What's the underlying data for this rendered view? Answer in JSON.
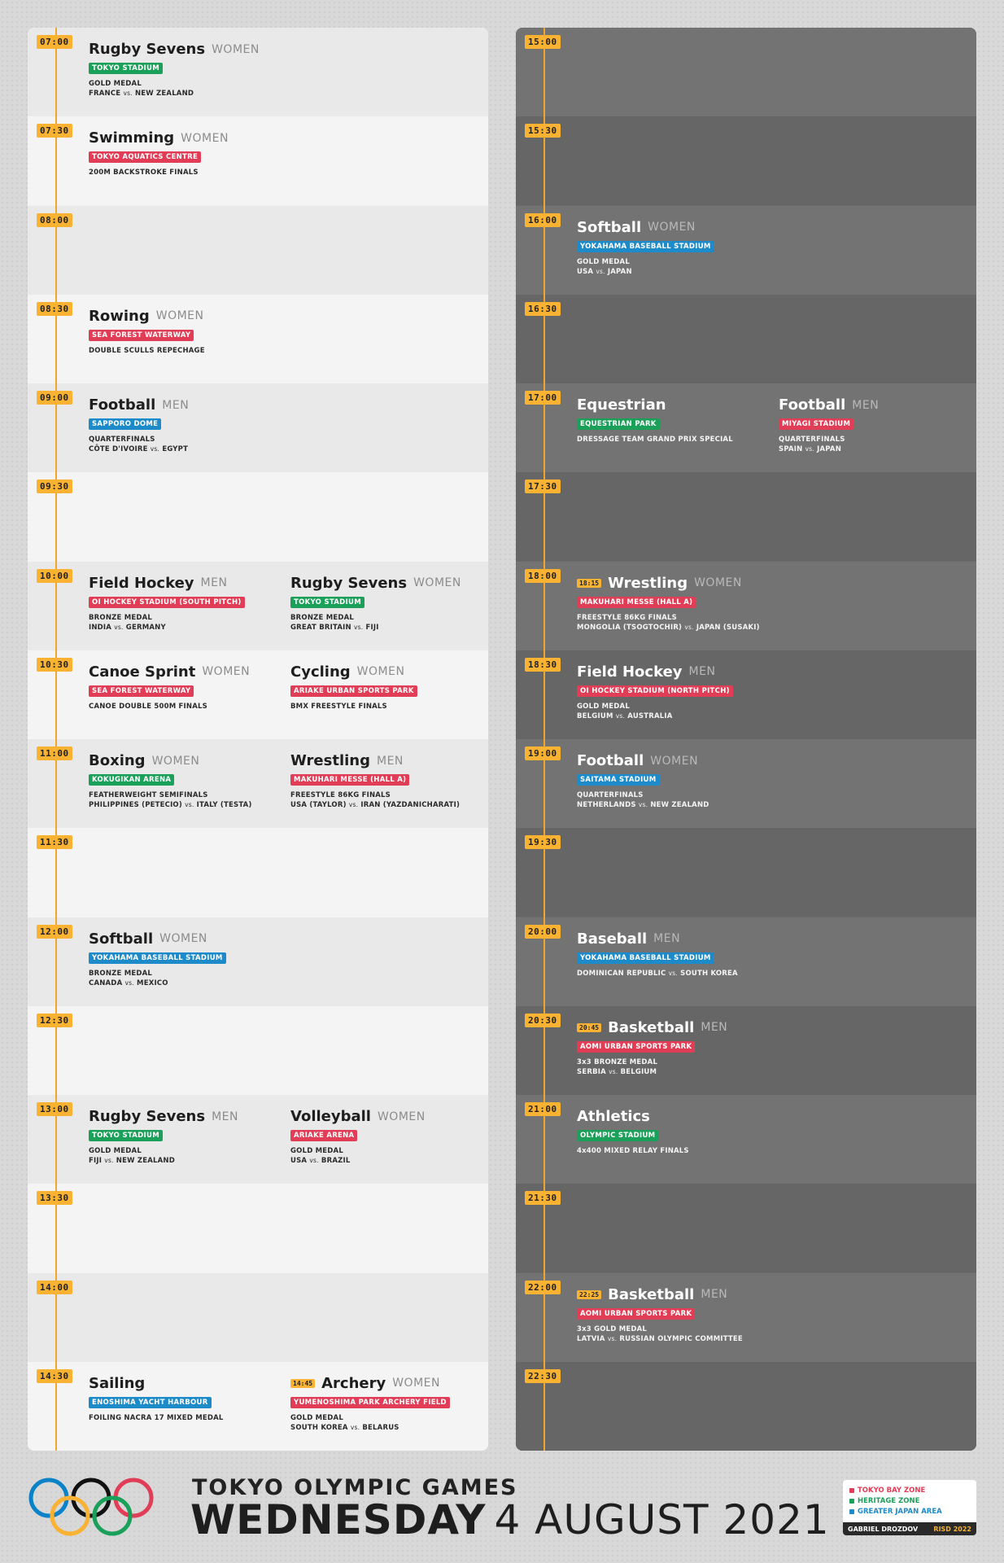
{
  "left_panel": {
    "slots": [
      {
        "time": "07:00",
        "events": [
          {
            "sport": "Rugby Sevens",
            "gender": "WOMEN",
            "venue": "TOKYO STADIUM",
            "zone": "green",
            "lines": [
              [
                "GOLD MEDAL"
              ],
              [
                "FRANCE",
                "vs.",
                "NEW ZEALAND"
              ]
            ]
          }
        ]
      },
      {
        "time": "07:30",
        "events": [
          {
            "sport": "Swimming",
            "gender": "WOMEN",
            "venue": "TOKYO AQUATICS CENTRE",
            "zone": "red",
            "lines": [
              [
                "200M BACKSTROKE FINALS"
              ]
            ]
          }
        ]
      },
      {
        "time": "08:00",
        "events": []
      },
      {
        "time": "08:30",
        "events": [
          {
            "sport": "Rowing",
            "gender": "WOMEN",
            "venue": "SEA FOREST WATERWAY",
            "zone": "red",
            "lines": [
              [
                "DOUBLE SCULLS REPECHAGE"
              ]
            ]
          }
        ]
      },
      {
        "time": "09:00",
        "events": [
          {
            "sport": "Football",
            "gender": "MEN",
            "venue": "SAPPORO DOME",
            "zone": "blue",
            "lines": [
              [
                "QUARTERFINALS"
              ],
              [
                "CÔTE D'IVOIRE",
                "vs.",
                "EGYPT"
              ]
            ]
          }
        ]
      },
      {
        "time": "09:30",
        "events": []
      },
      {
        "time": "10:00",
        "events": [
          {
            "sport": "Field Hockey",
            "gender": "MEN",
            "venue": "OI HOCKEY STADIUM (SOUTH PITCH)",
            "zone": "red",
            "lines": [
              [
                "BRONZE MEDAL"
              ],
              [
                "INDIA",
                "vs.",
                "GERMANY"
              ]
            ]
          },
          {
            "sport": "Rugby Sevens",
            "gender": "WOMEN",
            "venue": "TOKYO STADIUM",
            "zone": "green",
            "lines": [
              [
                "BRONZE MEDAL"
              ],
              [
                "GREAT BRITAIN",
                "vs.",
                "FIJI"
              ]
            ]
          }
        ]
      },
      {
        "time": "10:30",
        "events": [
          {
            "sport": "Canoe Sprint",
            "gender": "WOMEN",
            "venue": "SEA FOREST WATERWAY",
            "zone": "red",
            "lines": [
              [
                "CANOE DOUBLE 500M FINALS"
              ]
            ]
          },
          {
            "sport": "Cycling",
            "gender": "WOMEN",
            "venue": "ARIAKE URBAN SPORTS PARK",
            "zone": "red",
            "lines": [
              [
                "BMX FREESTYLE FINALS"
              ]
            ]
          }
        ]
      },
      {
        "time": "11:00",
        "events": [
          {
            "sport": "Boxing",
            "gender": "WOMEN",
            "venue": "KOKUGIKAN ARENA",
            "zone": "green",
            "lines": [
              [
                "FEATHERWEIGHT SEMIFINALS"
              ],
              [
                "PHILIPPINES (PETECIO)",
                "vs.",
                "ITALY (TESTA)"
              ]
            ]
          },
          {
            "sport": "Wrestling",
            "gender": "MEN",
            "venue": "MAKUHARI MESSE (HALL A)",
            "zone": "red",
            "lines": [
              [
                "FREESTYLE 86KG FINALS"
              ],
              [
                "USA (TAYLOR)",
                "vs.",
                "IRAN (YAZDANICHARATI)"
              ]
            ]
          }
        ]
      },
      {
        "time": "11:30",
        "events": []
      },
      {
        "time": "12:00",
        "events": [
          {
            "sport": "Softball",
            "gender": "WOMEN",
            "venue": "YOKAHAMA BASEBALL STADIUM",
            "zone": "blue",
            "lines": [
              [
                "BRONZE MEDAL"
              ],
              [
                "CANADA",
                "vs.",
                "MEXICO"
              ]
            ]
          }
        ]
      },
      {
        "time": "12:30",
        "events": []
      },
      {
        "time": "13:00",
        "events": [
          {
            "sport": "Rugby Sevens",
            "gender": "MEN",
            "venue": "TOKYO STADIUM",
            "zone": "green",
            "lines": [
              [
                "GOLD MEDAL"
              ],
              [
                "FIJI",
                "vs.",
                "NEW ZEALAND"
              ]
            ]
          },
          {
            "sport": "Volleyball",
            "gender": "WOMEN",
            "venue": "ARIAKE ARENA",
            "zone": "red",
            "lines": [
              [
                "GOLD MEDAL"
              ],
              [
                "USA",
                "vs.",
                "BRAZIL"
              ]
            ]
          }
        ]
      },
      {
        "time": "13:30",
        "events": []
      },
      {
        "time": "14:00",
        "events": []
      },
      {
        "time": "14:30",
        "events": [
          {
            "sport": "Sailing",
            "gender": "",
            "venue": "ENOSHIMA YACHT HARBOUR",
            "zone": "blue",
            "lines": [
              [
                "FOILING NACRA 17 MIXED MEDAL"
              ]
            ]
          },
          {
            "start": "14:45",
            "sport": "Archery",
            "gender": "WOMEN",
            "venue": "YUMENOSHIMA PARK ARCHERY FIELD",
            "zone": "red",
            "lines": [
              [
                "GOLD MEDAL"
              ],
              [
                "SOUTH KOREA",
                "vs.",
                "BELARUS"
              ]
            ]
          }
        ]
      }
    ]
  },
  "right_panel": {
    "slots": [
      {
        "time": "15:00",
        "events": []
      },
      {
        "time": "15:30",
        "events": []
      },
      {
        "time": "16:00",
        "events": [
          {
            "sport": "Softball",
            "gender": "WOMEN",
            "venue": "YOKAHAMA BASEBALL STADIUM",
            "zone": "blue",
            "lines": [
              [
                "GOLD MEDAL"
              ],
              [
                "USA",
                "vs.",
                "JAPAN"
              ]
            ]
          }
        ]
      },
      {
        "time": "16:30",
        "events": []
      },
      {
        "time": "17:00",
        "events": [
          {
            "sport": "Equestrian",
            "gender": "",
            "venue": "EQUESTRIAN PARK",
            "zone": "green",
            "lines": [
              [
                "DRESSAGE TEAM GRAND PRIX SPECIAL"
              ]
            ]
          },
          {
            "sport": "Football",
            "gender": "MEN",
            "venue": "MIYAGI STADIUM",
            "zone": "red",
            "lines": [
              [
                "QUARTERFINALS"
              ],
              [
                "SPAIN",
                "vs.",
                "JAPAN"
              ]
            ]
          }
        ]
      },
      {
        "time": "17:30",
        "events": []
      },
      {
        "time": "18:00",
        "events": [
          {
            "start": "18:15",
            "sport": "Wrestling",
            "gender": "WOMEN",
            "venue": "MAKUHARI MESSE (HALL A)",
            "zone": "red",
            "lines": [
              [
                "FREESTYLE 86KG FINALS"
              ],
              [
                "MONGOLIA (TSOGTOCHIR)",
                "vs.",
                "JAPAN (SUSAKI)"
              ]
            ]
          }
        ]
      },
      {
        "time": "18:30",
        "events": [
          {
            "sport": "Field Hockey",
            "gender": "MEN",
            "venue": "OI HOCKEY STADIUM (NORTH PITCH)",
            "zone": "red",
            "lines": [
              [
                "GOLD MEDAL"
              ],
              [
                "BELGIUM",
                "vs.",
                "AUSTRALIA"
              ]
            ]
          }
        ]
      },
      {
        "time": "19:00",
        "events": [
          {
            "sport": "Football",
            "gender": "WOMEN",
            "venue": "SAITAMA STADIUM",
            "zone": "blue",
            "lines": [
              [
                "QUARTERFINALS"
              ],
              [
                "NETHERLANDS",
                "vs.",
                "NEW ZEALAND"
              ]
            ]
          }
        ]
      },
      {
        "time": "19:30",
        "events": []
      },
      {
        "time": "20:00",
        "events": [
          {
            "sport": "Baseball",
            "gender": "MEN",
            "venue": "YOKAHAMA BASEBALL STADIUM",
            "zone": "blue",
            "lines": [
              [
                "DOMINICAN REPUBLIC",
                "vs.",
                "SOUTH KOREA"
              ]
            ]
          }
        ]
      },
      {
        "time": "20:30",
        "events": [
          {
            "start": "20:45",
            "sport": "Basketball",
            "gender": "MEN",
            "venue": "AOMI URBAN SPORTS PARK",
            "zone": "red",
            "lines": [
              [
                "3x3 BRONZE MEDAL"
              ],
              [
                "SERBIA",
                "vs.",
                "BELGIUM"
              ]
            ]
          }
        ]
      },
      {
        "time": "21:00",
        "events": [
          {
            "sport": "Athletics",
            "gender": "",
            "venue": "OLYMPIC STADIUM",
            "zone": "green",
            "lines": [
              [
                "4x400 MIXED RELAY FINALS"
              ]
            ]
          }
        ]
      },
      {
        "time": "21:30",
        "events": []
      },
      {
        "time": "22:00",
        "events": [
          {
            "start": "22:25",
            "sport": "Basketball",
            "gender": "MEN",
            "venue": "AOMI URBAN SPORTS PARK",
            "zone": "red",
            "lines": [
              [
                "3x3 GOLD MEDAL"
              ],
              [
                "LATVIA",
                "vs.",
                "RUSSIAN OLYMPIC COMMITTEE"
              ]
            ]
          }
        ]
      },
      {
        "time": "22:30",
        "events": []
      }
    ]
  },
  "footer": {
    "line1": "TOKYO OLYMPIC GAMES",
    "day": "WEDNESDAY",
    "date": "4 AUGUST 2021"
  },
  "legend": {
    "items": [
      {
        "label": "TOKYO BAY ZONE",
        "color": "#e23d56"
      },
      {
        "label": "HERITAGE ZONE",
        "color": "#1ba05a"
      },
      {
        "label": "GREATER JAPAN AREA",
        "color": "#1d8bc9"
      }
    ],
    "author": "GABRIEL DROZDOV",
    "school": "RISD 2022"
  },
  "colors": {
    "accent": "#f9b232",
    "timeline": "#f0a62a",
    "tokyo_bay_zone": "#e23d56",
    "heritage_zone": "#1ba05a",
    "greater_japan_area": "#1d8bc9"
  }
}
